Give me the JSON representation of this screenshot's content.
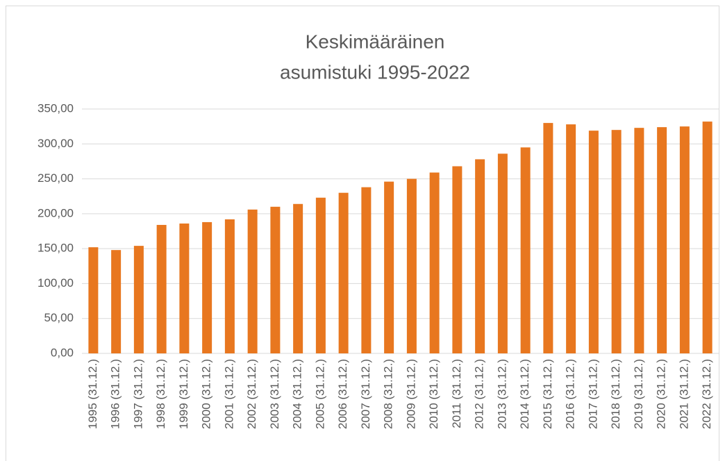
{
  "chart_data": {
    "type": "bar",
    "title": [
      "Keskimääräinen",
      "asumistuki 1995-2022"
    ],
    "categories": [
      "1995 (31.12.)",
      "1996 (31.12.)",
      "1997 (31.12.)",
      "1998 (31.12.)",
      "1999 (31.12.)",
      "2000 (31.12.)",
      "2001 (31.12.)",
      "2002 (31.12.)",
      "2003 (31.12.)",
      "2004 (31.12.)",
      "2005 (31.12.)",
      "2006 (31.12.)",
      "2007 (31.12.)",
      "2008 (31.12.)",
      "2009 (31.12.)",
      "2010 (31.12.)",
      "2011 (31.12.)",
      "2012 (31.12.)",
      "2013 (31.12.)",
      "2014 (31.12.)",
      "2015 (31.12.)",
      "2016 (31.12.)",
      "2017 (31.12.)",
      "2018 (31.12.)",
      "2019 (31.12.)",
      "2020 (31.12.)",
      "2021 (31.12.)",
      "2022 (31.12.)"
    ],
    "values": [
      152,
      148,
      154,
      184,
      186,
      188,
      192,
      206,
      210,
      214,
      223,
      230,
      238,
      246,
      250,
      259,
      268,
      278,
      286,
      295,
      330,
      328,
      319,
      320,
      323,
      324,
      325,
      332
    ],
    "color": "#e8771f",
    "ylim": [
      0,
      350
    ],
    "yticks": [
      {
        "value": 0,
        "label": "0,00"
      },
      {
        "value": 50,
        "label": "50,00"
      },
      {
        "value": 100,
        "label": "100,00"
      },
      {
        "value": 150,
        "label": "150,00"
      },
      {
        "value": 200,
        "label": "200,00"
      },
      {
        "value": 250,
        "label": "250,00"
      },
      {
        "value": 300,
        "label": "300,00"
      },
      {
        "value": 350,
        "label": "350,00"
      }
    ],
    "grid": true
  }
}
